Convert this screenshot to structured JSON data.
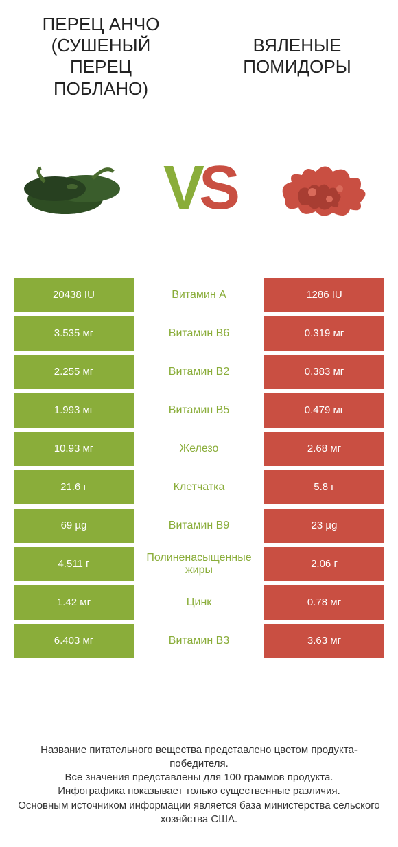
{
  "colors": {
    "left": "#8aad3a",
    "right": "#c94f42",
    "text": "#333333",
    "bg": "#ffffff"
  },
  "header": {
    "left": "ПЕРЕЦ АНЧО (СУШЕНЫЙ ПЕРЕЦ ПОБЛАНО)",
    "right": "ВЯЛЕНЫЕ ПОМИДОРЫ"
  },
  "vs": {
    "v": "V",
    "s": "S"
  },
  "rows": [
    {
      "left": "20438 IU",
      "label": "Витамин A",
      "right": "1286 IU",
      "winner": "left"
    },
    {
      "left": "3.535 мг",
      "label": "Витамин B6",
      "right": "0.319 мг",
      "winner": "left"
    },
    {
      "left": "2.255 мг",
      "label": "Витамин B2",
      "right": "0.383 мг",
      "winner": "left"
    },
    {
      "left": "1.993 мг",
      "label": "Витамин B5",
      "right": "0.479 мг",
      "winner": "left"
    },
    {
      "left": "10.93 мг",
      "label": "Железо",
      "right": "2.68 мг",
      "winner": "left"
    },
    {
      "left": "21.6 г",
      "label": "Клетчатка",
      "right": "5.8 г",
      "winner": "left"
    },
    {
      "left": "69 µg",
      "label": "Витамин B9",
      "right": "23 µg",
      "winner": "left"
    },
    {
      "left": "4.511 г",
      "label": "Полиненасыщенные жиры",
      "right": "2.06 г",
      "winner": "left"
    },
    {
      "left": "1.42 мг",
      "label": "Цинк",
      "right": "0.78 мг",
      "winner": "left"
    },
    {
      "left": "6.403 мг",
      "label": "Витамин B3",
      "right": "3.63 мг",
      "winner": "left"
    }
  ],
  "footer": {
    "l1": "Название питательного вещества представлено цветом продукта-победителя.",
    "l2": "Все значения представлены для 100 граммов продукта.",
    "l3": "Инфографика показывает только существенные различия.",
    "l4": "Основным источником информации является база министерства сельского хозяйства США."
  }
}
